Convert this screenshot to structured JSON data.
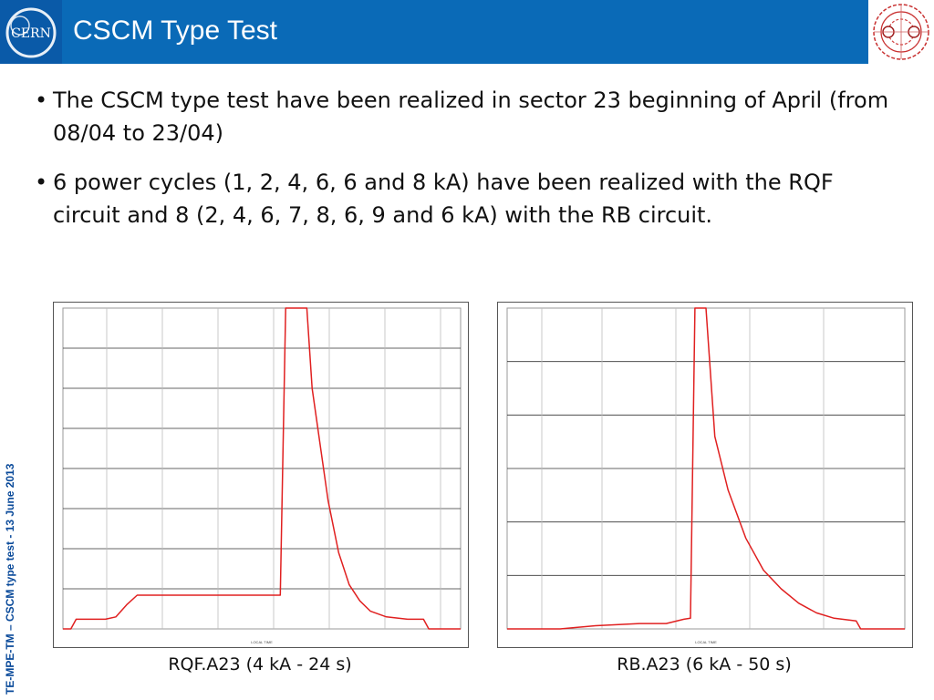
{
  "header": {
    "title": "CSCM Type Test",
    "logo_text": "CERN",
    "colors": {
      "bar": "#0a6ab7",
      "title": "#ffffff"
    }
  },
  "bullets": [
    "The CSCM type test have been realized in sector 23 beginning of April (from 08/04 to 23/04)",
    "6 power cycles (1, 2, 4, 6, 6 and 8 kA) have been realized with the RQF circuit and 8 (2, 4, 6, 7, 8, 6, 9 and 6 kA) with the RB circuit."
  ],
  "side_label": "TE-MPE-TM – CSCM type test - 13 June 2013",
  "chart_data": [
    {
      "type": "line",
      "caption": "RQF.A23 (4 kA - 24 s)",
      "xlabel": "LOCAL TIME",
      "ylim": [
        0,
        400
      ],
      "color": "#e02020",
      "x": [
        0,
        1.5,
        2.5,
        8,
        10,
        12,
        14,
        40,
        41,
        42,
        46,
        47,
        50,
        52,
        54,
        56,
        58,
        61,
        65,
        68,
        69,
        75
      ],
      "y": [
        0,
        0,
        12,
        12,
        15,
        30,
        42,
        42,
        42,
        400,
        400,
        300,
        160,
        95,
        55,
        35,
        22,
        15,
        12,
        12,
        0,
        0
      ]
    },
    {
      "type": "line",
      "caption": "RB.A23 (6 kA - 50 s)",
      "xlabel": "LOCAL TIME",
      "ylim": [
        0,
        600
      ],
      "color": "#e02020",
      "x": [
        0,
        12,
        20,
        30,
        36,
        40,
        41.5,
        42.5,
        45,
        47,
        50,
        54,
        58,
        62,
        66,
        70,
        74,
        79,
        80,
        90
      ],
      "y": [
        0,
        0,
        6,
        10,
        10,
        18,
        20,
        600,
        600,
        360,
        260,
        170,
        110,
        75,
        48,
        30,
        20,
        15,
        0,
        0
      ]
    }
  ]
}
